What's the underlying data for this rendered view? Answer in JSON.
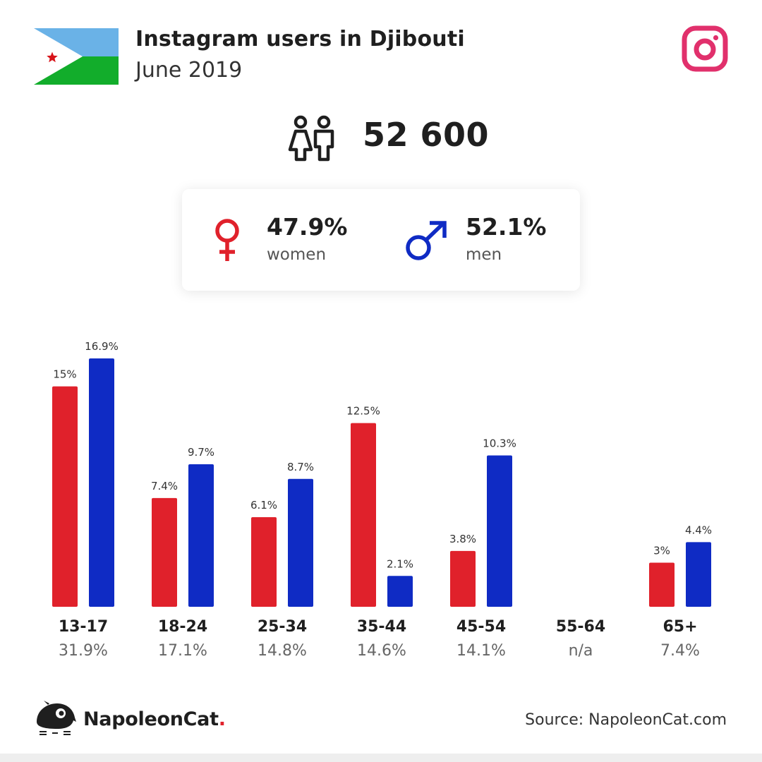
{
  "header": {
    "title": "Instagram users in Djibouti",
    "subtitle": "June 2019"
  },
  "total_users": "52 600",
  "gender": {
    "women": {
      "pct": "47.9%",
      "label": "women"
    },
    "men": {
      "pct": "52.1%",
      "label": "men"
    }
  },
  "colors": {
    "women": "#e0212b",
    "men": "#0f2bc4",
    "instagram": "#e1306c"
  },
  "icons": [
    "flag-djibouti",
    "instagram-icon",
    "people-icon",
    "female-symbol-icon",
    "male-symbol-icon",
    "napoleoncat-logo"
  ],
  "chart_data": {
    "type": "bar",
    "categories": [
      "13-17",
      "18-24",
      "25-34",
      "35-44",
      "45-54",
      "55-64",
      "65+"
    ],
    "category_totals": [
      "31.9%",
      "17.1%",
      "14.8%",
      "14.6%",
      "14.1%",
      "n/a",
      "7.4%"
    ],
    "series": [
      {
        "values": [
          15,
          7.4,
          6.1,
          12.5,
          3.8,
          null,
          3
        ],
        "labels": [
          "15%",
          "7.4%",
          "6.1%",
          "12.5%",
          "3.8%",
          "",
          "3%"
        ]
      },
      {
        "values": [
          16.9,
          9.7,
          8.7,
          2.1,
          10.3,
          null,
          4.4
        ],
        "labels": [
          "16.9%",
          "9.7%",
          "8.7%",
          "2.1%",
          "10.3%",
          "",
          "4.4%"
        ]
      }
    ],
    "ylim": [
      0,
      16.9
    ]
  },
  "footer": {
    "brand": "NapoleonCat",
    "brand_dot": ".",
    "source": "Source: NapoleonCat.com"
  }
}
